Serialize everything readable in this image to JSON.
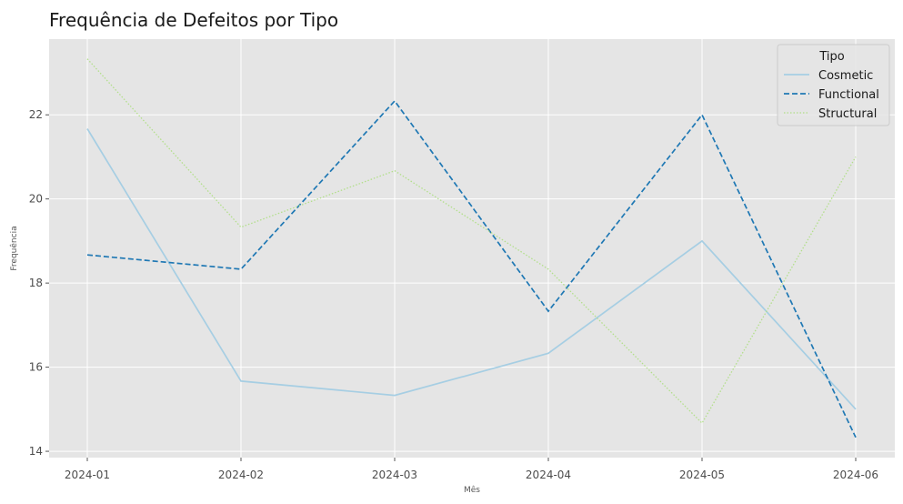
{
  "chart_data": {
    "type": "line",
    "title": "Frequência de Defeitos por Tipo",
    "xlabel": "Mês",
    "ylabel": "Frequência",
    "categories": [
      "2024-01",
      "2024-02",
      "2024-03",
      "2024-04",
      "2024-05",
      "2024-06"
    ],
    "ylim": [
      13.85,
      23.8
    ],
    "yticks": [
      14,
      16,
      18,
      20,
      22
    ],
    "grid": true,
    "legend": {
      "title": "Tipo",
      "position": "top-right"
    },
    "series": [
      {
        "name": "Cosmetic",
        "color": "#a6cee3",
        "style": "solid",
        "values": [
          21.67,
          15.67,
          15.33,
          16.33,
          19.0,
          15.0
        ]
      },
      {
        "name": "Functional",
        "color": "#1f78b4",
        "style": "dashed",
        "values": [
          18.67,
          18.33,
          22.33,
          17.33,
          22.0,
          14.33
        ]
      },
      {
        "name": "Structural",
        "color": "#b2df8a",
        "style": "dotted",
        "values": [
          23.33,
          19.33,
          20.67,
          18.33,
          14.67,
          21.0
        ]
      }
    ]
  }
}
